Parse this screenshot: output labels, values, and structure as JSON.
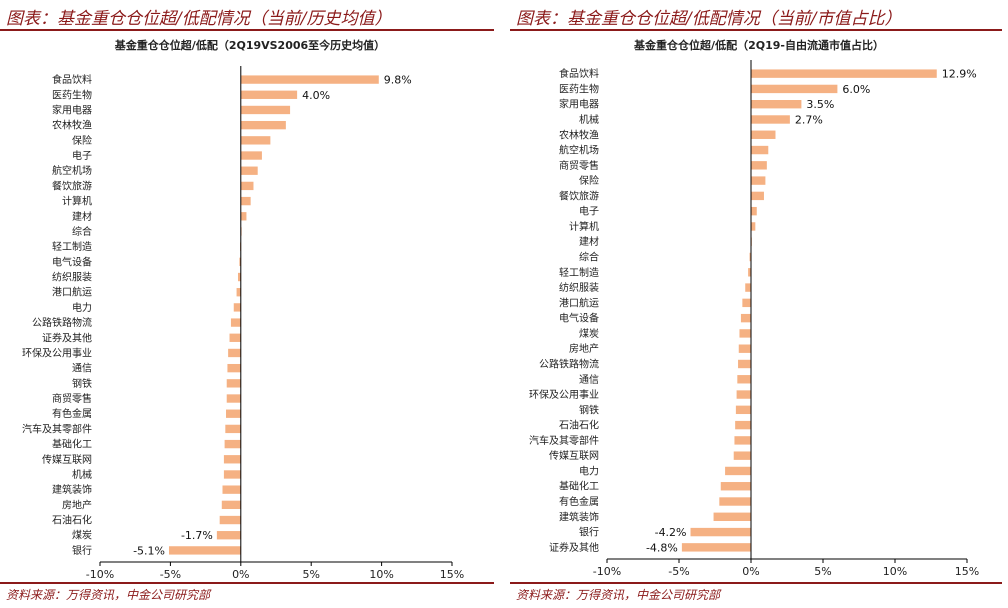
{
  "colors": {
    "bar": "#f5b183",
    "accent": "#8b1a1a",
    "axis": "#000000"
  },
  "chart_data": [
    {
      "type": "bar",
      "orientation": "horizontal",
      "figure_title": "图表：基金重仓仓位超/低配情况（当前/历史均值）",
      "title": "基金重仓仓位超/低配（2Q19VS2006至今历史均值）",
      "xlim": [
        -10,
        15
      ],
      "xticks": [
        -10,
        -5,
        0,
        5,
        10,
        15
      ],
      "xtick_labels": [
        "-10%",
        "-5%",
        "0%",
        "5%",
        "10%",
        "15%"
      ],
      "categories": [
        "食品饮料",
        "医药生物",
        "家用电器",
        "农林牧渔",
        "保险",
        "电子",
        "航空机场",
        "餐饮旅游",
        "计算机",
        "建材",
        "综合",
        "轻工制造",
        "电气设备",
        "纺织服装",
        "港口航运",
        "电力",
        "公路铁路物流",
        "证券及其他",
        "环保及公用事业",
        "通信",
        "钢铁",
        "商贸零售",
        "有色金属",
        "汽车及其零部件",
        "基础化工",
        "传媒互联网",
        "机械",
        "建筑装饰",
        "房地产",
        "石油石化",
        "煤炭",
        "银行"
      ],
      "values": [
        9.8,
        4.0,
        3.5,
        3.2,
        2.1,
        1.5,
        1.2,
        0.9,
        0.7,
        0.4,
        0.05,
        -0.05,
        -0.1,
        -0.2,
        -0.3,
        -0.5,
        -0.7,
        -0.8,
        -0.9,
        -0.95,
        -1.0,
        -1.0,
        -1.05,
        -1.1,
        -1.15,
        -1.2,
        -1.2,
        -1.3,
        -1.35,
        -1.5,
        -1.7,
        -5.1
      ],
      "data_labels": {
        "0": "9.8%",
        "1": "4.0%",
        "30": "-1.7%",
        "31": "-5.1%"
      },
      "source": "资料来源：万得资讯，中金公司研究部"
    },
    {
      "type": "bar",
      "orientation": "horizontal",
      "figure_title": "图表：基金重仓仓位超/低配情况（当前/市值占比）",
      "title": "基金重仓仓位超/低配（2Q19-自由流通市值占比）",
      "xlim": [
        -10,
        15
      ],
      "xticks": [
        -10,
        -5,
        0,
        5,
        10,
        15
      ],
      "xtick_labels": [
        "-10%",
        "-5%",
        "0%",
        "5%",
        "10%",
        "15%"
      ],
      "categories": [
        "食品饮料",
        "医药生物",
        "家用电器",
        "机械",
        "农林牧渔",
        "航空机场",
        "商贸零售",
        "保险",
        "餐饮旅游",
        "电子",
        "计算机",
        "建材",
        "综合",
        "轻工制造",
        "纺织服装",
        "港口航运",
        "电气设备",
        "煤炭",
        "房地产",
        "公路铁路物流",
        "通信",
        "环保及公用事业",
        "钢铁",
        "石油石化",
        "汽车及其零部件",
        "传媒互联网",
        "电力",
        "基础化工",
        "有色金属",
        "建筑装饰",
        "银行",
        "证券及其他"
      ],
      "values": [
        12.9,
        6.0,
        3.5,
        2.7,
        1.7,
        1.2,
        1.1,
        1.0,
        0.9,
        0.4,
        0.3,
        0.05,
        -0.1,
        -0.2,
        -0.4,
        -0.6,
        -0.7,
        -0.8,
        -0.85,
        -0.9,
        -0.95,
        -1.0,
        -1.05,
        -1.1,
        -1.15,
        -1.2,
        -1.8,
        -2.1,
        -2.2,
        -2.6,
        -4.2,
        -4.8
      ],
      "data_labels": {
        "0": "12.9%",
        "1": "6.0%",
        "2": "3.5%",
        "3": "2.7%",
        "30": "-4.2%",
        "31": "-4.8%"
      },
      "source": "资料来源：万得资讯，中金公司研究部"
    }
  ]
}
